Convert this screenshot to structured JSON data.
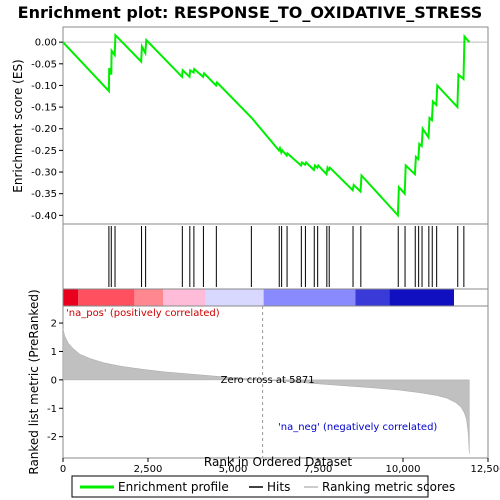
{
  "chart_data": {
    "type": "line",
    "title": "Enrichment plot: RESPONSE_TO_OXIDATIVE_STRESS",
    "top_panel": {
      "ylabel": "Enrichment score (ES)",
      "ylim": [
        -0.42,
        0.035
      ],
      "yticks": [
        0.0,
        -0.05,
        -0.1,
        -0.15,
        -0.2,
        -0.25,
        -0.3,
        -0.35,
        -0.4
      ],
      "ytick_labels": [
        "0.00",
        "-0.05",
        "-0.10",
        "-0.15",
        "-0.20",
        "-0.25",
        "-0.30",
        "-0.35",
        "-0.40"
      ],
      "series": [
        {
          "name": "Enrichment profile",
          "color": "#00ee00",
          "x": [
            0,
            1350,
            1360,
            1420,
            1430,
            1520,
            1540,
            2300,
            2320,
            2420,
            2450,
            3500,
            3520,
            3720,
            3740,
            3840,
            3860,
            4120,
            4150,
            4500,
            4530,
            5550,
            6350,
            6380,
            6420,
            6450,
            6580,
            6600,
            7000,
            7030,
            7120,
            7150,
            7380,
            7410,
            7480,
            7510,
            7750,
            7780,
            7820,
            7850,
            8520,
            8550,
            8750,
            8780,
            9850,
            9880,
            10050,
            10080,
            10350,
            10380,
            10450,
            10480,
            10550,
            10580,
            10750,
            10780,
            10850,
            10880,
            10980,
            11010,
            11600,
            11630,
            11780,
            11810,
            11950
          ],
          "y": [
            0.0,
            -0.113,
            -0.06,
            -0.075,
            -0.02,
            -0.03,
            0.016,
            -0.045,
            -0.01,
            -0.025,
            0.005,
            -0.08,
            -0.065,
            -0.08,
            -0.065,
            -0.07,
            -0.062,
            -0.08,
            -0.072,
            -0.1,
            -0.093,
            -0.175,
            -0.25,
            -0.245,
            -0.255,
            -0.25,
            -0.262,
            -0.257,
            -0.285,
            -0.278,
            -0.283,
            -0.278,
            -0.295,
            -0.285,
            -0.29,
            -0.285,
            -0.305,
            -0.29,
            -0.295,
            -0.29,
            -0.342,
            -0.33,
            -0.345,
            -0.308,
            -0.4,
            -0.335,
            -0.35,
            -0.285,
            -0.305,
            -0.265,
            -0.27,
            -0.235,
            -0.24,
            -0.2,
            -0.22,
            -0.175,
            -0.18,
            -0.137,
            -0.145,
            -0.1,
            -0.15,
            -0.075,
            -0.085,
            0.013,
            0.0
          ]
        }
      ]
    },
    "hits": [
      1350,
      1420,
      1530,
      2310,
      2430,
      3510,
      3730,
      3850,
      4130,
      4510,
      5540,
      6360,
      6430,
      6590,
      7010,
      7130,
      7390,
      7490,
      7760,
      7830,
      8530,
      8760,
      9860,
      10060,
      10360,
      10460,
      10560,
      10760,
      10860,
      10990,
      11610,
      11790
    ],
    "bottom_panel": {
      "ylabel": "Ranked list metric (PreRanked)",
      "xlabel": "Rank in Ordered Dataset",
      "xlim": [
        0,
        12500
      ],
      "ylim": [
        -2.75,
        2.6
      ],
      "yticks": [
        2,
        1,
        0,
        -1,
        -2
      ],
      "ytick_labels": [
        "2",
        "1",
        "0",
        "-1",
        "-2"
      ],
      "xticks": [
        0,
        2500,
        5000,
        7500,
        10000,
        12500
      ],
      "xtick_labels": [
        "0",
        "2,500",
        "5,000",
        "7,500",
        "10,000",
        "12,500"
      ],
      "metric_x": [
        0,
        50,
        150,
        300,
        500,
        800,
        1200,
        1700,
        2300,
        3000,
        3800,
        4600,
        5300,
        5871,
        6500,
        7300,
        8200,
        9100,
        9900,
        10500,
        11000,
        11300,
        11550,
        11700,
        11800,
        11870,
        11920,
        11950
      ],
      "metric_y": [
        1.8,
        1.55,
        1.3,
        1.1,
        0.9,
        0.75,
        0.6,
        0.48,
        0.38,
        0.28,
        0.2,
        0.12,
        0.05,
        0.0,
        -0.05,
        -0.12,
        -0.2,
        -0.28,
        -0.36,
        -0.45,
        -0.55,
        -0.65,
        -0.8,
        -0.95,
        -1.15,
        -1.4,
        -1.9,
        -2.6
      ],
      "zero_cross_rank": 5871,
      "annotations": {
        "pos": "'na_pos' (positively correlated)",
        "neg": "'na_neg' (negatively correlated)",
        "zero": "Zero cross at 5871"
      }
    },
    "gradient_colors": [
      "#e8001e",
      "#ff5060",
      "#ff8890",
      "#ffbcd8",
      "#d8d8ff",
      "#8a8aff",
      "#3a3ad8",
      "#1010c0"
    ],
    "legend": {
      "items": [
        "Enrichment profile",
        "Hits",
        "Ranking metric scores"
      ]
    }
  }
}
